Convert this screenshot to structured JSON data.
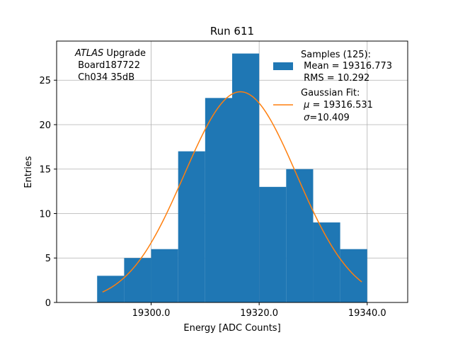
{
  "chart_data": {
    "type": "bar",
    "title": "Run 611",
    "xlabel": "Energy [ADC Counts]",
    "ylabel": "Entries",
    "xlim": [
      19282.5,
      19347.5
    ],
    "ylim": [
      0,
      29.4
    ],
    "grid": true,
    "legend_position": "top-right",
    "x_ticks": [
      19300.0,
      19320.0,
      19340.0
    ],
    "x_tick_labels": [
      "19300.0",
      "19320.0",
      "19340.0"
    ],
    "y_ticks": [
      0,
      5,
      10,
      15,
      20,
      25
    ],
    "y_tick_labels": [
      "0",
      "5",
      "10",
      "15",
      "20",
      "25"
    ],
    "histogram": {
      "name": "Samples (125):",
      "color": "#1f77b4",
      "bins": [
        {
          "x0": 19290,
          "x1": 19295,
          "count": 3
        },
        {
          "x0": 19295,
          "x1": 19300,
          "count": 5
        },
        {
          "x0": 19300,
          "x1": 19305,
          "count": 6
        },
        {
          "x0": 19305,
          "x1": 19310,
          "count": 17
        },
        {
          "x0": 19310,
          "x1": 19315,
          "count": 23
        },
        {
          "x0": 19315,
          "x1": 19320,
          "count": 28
        },
        {
          "x0": 19320,
          "x1": 19325,
          "count": 13
        },
        {
          "x0": 19325,
          "x1": 19330,
          "count": 15
        },
        {
          "x0": 19330,
          "x1": 19335,
          "count": 9
        },
        {
          "x0": 19335,
          "x1": 19340,
          "count": 6
        }
      ],
      "mean_line": " Mean = 19316.773",
      "rms_line": " RMS = 10.292"
    },
    "fit": {
      "name": "Gaussian Fit:",
      "color": "#ff7f0e",
      "mu": 19316.531,
      "sigma": 10.409,
      "amplitude": 23.7,
      "x_range": [
        19291,
        19339
      ],
      "mu_line": " = 19316.531",
      "sigma_line": "=10.409"
    },
    "annotation": {
      "experiment": "ATLAS",
      "experiment_suffix": " Upgrade",
      "board": " Board187722",
      "channel": " Ch034 35dB"
    }
  }
}
